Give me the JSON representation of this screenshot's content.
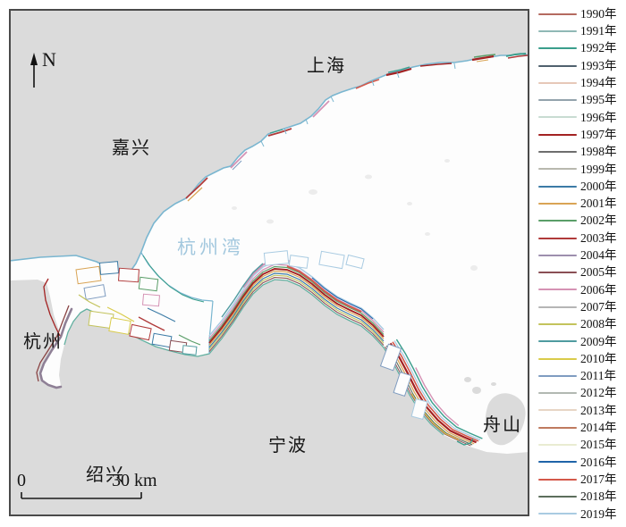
{
  "map": {
    "labels": {
      "shanghai": "上海",
      "jiaxing": "嘉兴",
      "hangzhou_bay": "杭州湾",
      "hangzhou": "杭州",
      "ningbo": "宁波",
      "shaoxing": "绍兴",
      "zhoushan": "舟山"
    },
    "north_arrow_label": "N",
    "scale_bar": {
      "start_label": "0",
      "end_label": "30 km"
    },
    "colors": {
      "land": "#dbdbdb",
      "water": "#fdfdfd",
      "frame": "#4a4a4a",
      "coastline": "#7ab6d0",
      "south_shore": "#62b0a0",
      "bay_label_color": "#a3c8de",
      "river_channel_line": "#8f8096"
    }
  },
  "legend": {
    "items": [
      {
        "label": "1990年",
        "color": "#b46a60"
      },
      {
        "label": "1991年",
        "color": "#8fb8b5"
      },
      {
        "label": "1992年",
        "color": "#3a9e8c"
      },
      {
        "label": "1993年",
        "color": "#50616e"
      },
      {
        "label": "1994年",
        "color": "#e6c8b8"
      },
      {
        "label": "1995年",
        "color": "#93a3ac"
      },
      {
        "label": "1996年",
        "color": "#c8dcd2"
      },
      {
        "label": "1997年",
        "color": "#a32222"
      },
      {
        "label": "1998年",
        "color": "#6e6e6e"
      },
      {
        "label": "1999年",
        "color": "#b8b8ae"
      },
      {
        "label": "2000年",
        "color": "#3c7ba6"
      },
      {
        "label": "2001年",
        "color": "#d9a455"
      },
      {
        "label": "2002年",
        "color": "#5a9e68"
      },
      {
        "label": "2003年",
        "color": "#b03a3a"
      },
      {
        "label": "2004年",
        "color": "#9d8fae"
      },
      {
        "label": "2005年",
        "color": "#8a4f55"
      },
      {
        "label": "2006年",
        "color": "#d592b4"
      },
      {
        "label": "2007年",
        "color": "#b5b5b5"
      },
      {
        "label": "2008年",
        "color": "#c3c35c"
      },
      {
        "label": "2009年",
        "color": "#4f9ba0"
      },
      {
        "label": "2010年",
        "color": "#d9cb4a"
      },
      {
        "label": "2011年",
        "color": "#7f9cc0"
      },
      {
        "label": "2012年",
        "color": "#b2b8b2"
      },
      {
        "label": "2013年",
        "color": "#e7d5c5"
      },
      {
        "label": "2014年",
        "color": "#bf7a5f"
      },
      {
        "label": "2015年",
        "color": "#e9ecd2"
      },
      {
        "label": "2016年",
        "color": "#1f64a8"
      },
      {
        "label": "2017年",
        "color": "#d4584a"
      },
      {
        "label": "2018年",
        "color": "#5c6e5c"
      },
      {
        "label": "2019年",
        "color": "#a9cbe2"
      }
    ]
  }
}
